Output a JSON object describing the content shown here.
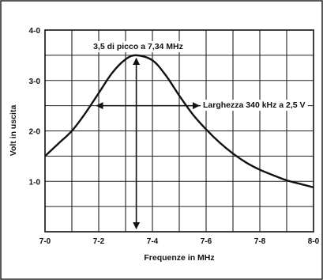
{
  "chart_data": {
    "type": "line",
    "title": "",
    "xlabel": "Frequenze in MHz",
    "ylabel": "Volt in uscita",
    "xlim": [
      7.0,
      8.0
    ],
    "ylim": [
      0,
      4
    ],
    "x_ticks": [
      7.0,
      7.2,
      7.4,
      7.6,
      7.8,
      8.0
    ],
    "x_tick_labels": [
      "7-0",
      "7-2",
      "7-4",
      "7-6",
      "7-8",
      "8-0"
    ],
    "y_ticks": [
      1,
      2,
      3,
      4
    ],
    "y_tick_labels": [
      "1-0",
      "2-0",
      "3-0",
      "4-0"
    ],
    "grid": true,
    "series": [
      {
        "x": [
          7.0,
          7.05,
          7.1,
          7.15,
          7.2,
          7.25,
          7.3,
          7.34,
          7.4,
          7.45,
          7.5,
          7.55,
          7.6,
          7.65,
          7.7,
          7.75,
          7.8,
          7.85,
          7.9,
          7.95,
          8.0
        ],
        "values": [
          1.5,
          1.75,
          2.0,
          2.35,
          2.75,
          3.15,
          3.42,
          3.5,
          3.4,
          3.1,
          2.7,
          2.33,
          2.03,
          1.77,
          1.55,
          1.37,
          1.23,
          1.12,
          1.02,
          0.95,
          0.88
        ]
      }
    ],
    "annotations": {
      "peak": "3,5 di picco a 7,34 MHz",
      "width": "Larghezza 340 kHz a 2,5 V"
    },
    "peak_marker": {
      "x": 7.34,
      "y_from": 0,
      "y_to": 3.5
    },
    "width_marker": {
      "x_from": 7.21,
      "x_to": 7.55,
      "y": 2.5
    }
  }
}
